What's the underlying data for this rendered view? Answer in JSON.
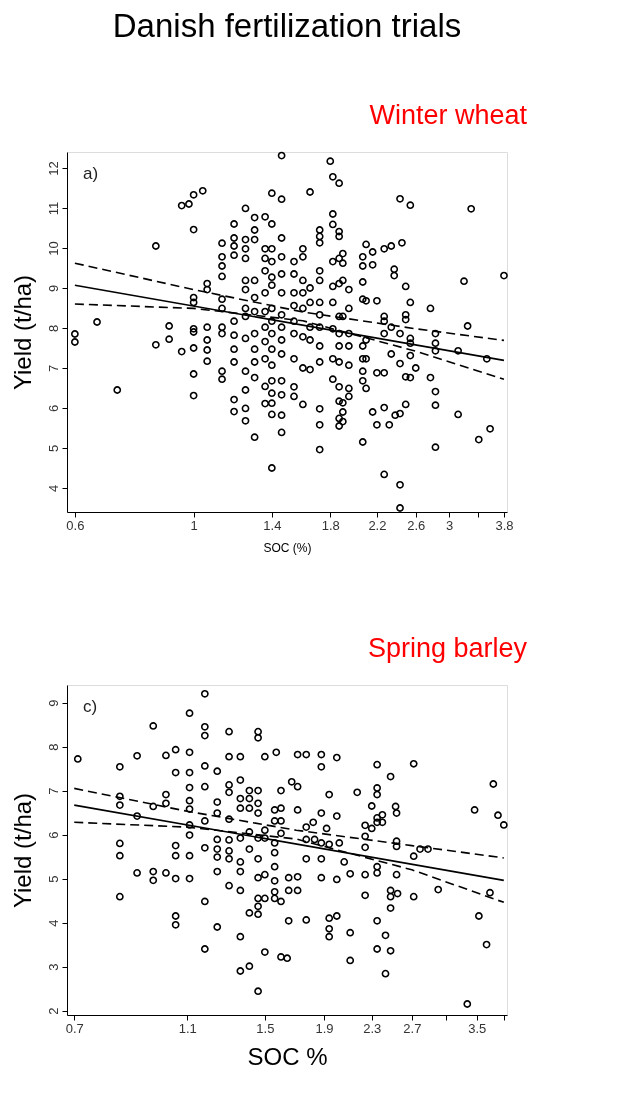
{
  "chart_data": [
    {
      "type": "scatter",
      "title": "Danish fertilization trials",
      "xlabel": "SOC (%)",
      "ylabel": "Yield (t/ha)",
      "annotations": [
        "Winter wheat",
        "a)"
      ],
      "log": "x",
      "grid": false,
      "xlim": [
        0.58,
        3.85
      ],
      "ylim": [
        3.4,
        12.4
      ],
      "xticks": [
        0.6,
        1,
        1.4,
        1.8,
        2.2,
        2.6,
        3,
        {
          "value": 3.4,
          "label": null
        },
        3.8
      ],
      "yticks": [
        4,
        5,
        6,
        7,
        8,
        9,
        10,
        11,
        12
      ],
      "series": [
        {
          "marker": "circle",
          "color": "#000000",
          "x": [
            0.6,
            0.6,
            0.66,
            0.72,
            0.85,
            0.85,
            0.9,
            0.9,
            0.95,
            0.95,
            0.98,
            1.0,
            1.04,
            1.0,
            1.0,
            1.0,
            1.0,
            1.0,
            1.0,
            1.0,
            1.0,
            1.06,
            1.06,
            1.06,
            1.06,
            1.06,
            1.06,
            1.13,
            1.13,
            1.13,
            1.13,
            1.13,
            1.13,
            1.13,
            1.13,
            1.13,
            1.13,
            1.19,
            1.19,
            1.19,
            1.19,
            1.19,
            1.19,
            1.19,
            1.19,
            1.19,
            1.19,
            1.25,
            1.25,
            1.25,
            1.25,
            1.25,
            1.25,
            1.25,
            1.25,
            1.25,
            1.25,
            1.25,
            1.25,
            1.25,
            1.3,
            1.3,
            1.3,
            1.3,
            1.3,
            1.3,
            1.3,
            1.3,
            1.3,
            1.3,
            1.3,
            1.36,
            1.36,
            1.36,
            1.36,
            1.36,
            1.36,
            1.36,
            1.36,
            1.36,
            1.36,
            1.36,
            1.4,
            1.4,
            1.4,
            1.4,
            1.4,
            1.4,
            1.4,
            1.4,
            1.4,
            1.4,
            1.4,
            1.4,
            1.4,
            1.4,
            1.4,
            1.4,
            1.46,
            1.46,
            1.46,
            1.46,
            1.46,
            1.46,
            1.46,
            1.46,
            1.46,
            1.46,
            1.46,
            1.46,
            1.46,
            1.46,
            1.54,
            1.54,
            1.54,
            1.54,
            1.54,
            1.54,
            1.54,
            1.54,
            1.54,
            1.6,
            1.6,
            1.6,
            1.6,
            1.6,
            1.6,
            1.6,
            1.6,
            1.65,
            1.65,
            1.65,
            1.65,
            1.65,
            1.65,
            1.72,
            1.72,
            1.72,
            1.72,
            1.72,
            1.72,
            1.72,
            1.72,
            1.72,
            1.72,
            1.72,
            1.72,
            1.72,
            1.8,
            1.82,
            1.87,
            1.82,
            1.82,
            1.82,
            1.82,
            1.82,
            1.82,
            1.82,
            1.82,
            1.87,
            1.87,
            1.87,
            1.87,
            1.87,
            1.87,
            1.87,
            1.87,
            1.87,
            1.87,
            1.87,
            1.87,
            1.9,
            1.9,
            1.9,
            1.9,
            1.9,
            1.9,
            1.9,
            1.95,
            1.95,
            1.95,
            1.95,
            1.95,
            1.95,
            1.95,
            2.07,
            2.07,
            2.07,
            2.07,
            2.07,
            2.07,
            2.07,
            2.07,
            2.07,
            2.1,
            2.1,
            2.1,
            2.1,
            2.1,
            2.16,
            2.16,
            2.16,
            2.2,
            2.2,
            2.2,
            2.27,
            2.27,
            2.27,
            2.27,
            2.27,
            2.27,
            2.27,
            2.34,
            2.34,
            2.34,
            2.32,
            2.38,
            2.43,
            2.45,
            2.43,
            2.54,
            2.37,
            2.37,
            2.43,
            2.43,
            2.43,
            2.43,
            2.49,
            2.49,
            2.49,
            2.49,
            2.49,
            2.54,
            2.54,
            2.54,
            2.54,
            2.54,
            2.6,
            2.77,
            2.77,
            2.83,
            2.83,
            2.83,
            2.83,
            2.83,
            2.83,
            3.12,
            3.12,
            3.2,
            3.25,
            3.3,
            3.41,
            3.53,
            3.58,
            3.8
          ],
          "values": [
            7.85,
            7.65,
            8.15,
            6.45,
            10.05,
            7.58,
            8.05,
            7.72,
            7.41,
            11.06,
            11.1,
            11.33,
            11.43,
            10.46,
            8.76,
            8.64,
            7.98,
            7.9,
            7.5,
            6.85,
            6.31,
            9.11,
            8.96,
            8.02,
            7.7,
            7.45,
            7.17,
            10.12,
            9.78,
            9.55,
            9.29,
            8.72,
            8.49,
            8.02,
            7.86,
            6.92,
            6.72,
            10.6,
            10.25,
            10.05,
            9.82,
            8.17,
            7.82,
            7.47,
            7.15,
            6.21,
            5.91,
            10.99,
            10.21,
            9.98,
            9.74,
            9.19,
            8.96,
            8.49,
            8.29,
            7.74,
            6.92,
            6.45,
            5.99,
            5.68,
            10.76,
            10.45,
            10.21,
            9.19,
            8.76,
            8.41,
            7.86,
            7.47,
            7.15,
            6.76,
            5.27,
            10.78,
            9.98,
            9.74,
            9.43,
            8.88,
            8.41,
            8.02,
            7.66,
            7.23,
            6.54,
            6.11,
            11.37,
            10.6,
            9.98,
            9.66,
            9.27,
            9.07,
            8.49,
            8.17,
            7.86,
            7.47,
            7.07,
            6.68,
            6.37,
            6.12,
            5.84,
            4.5,
            12.31,
            11.22,
            10.25,
            9.78,
            9.35,
            8.88,
            8.33,
            8.02,
            7.7,
            7.35,
            6.68,
            6.33,
            5.82,
            5.39,
            9.66,
            9.35,
            8.88,
            8.56,
            8.17,
            7.86,
            7.23,
            6.53,
            6.29,
            6.09,
            9.98,
            9.78,
            9.19,
            8.88,
            8.49,
            7.78,
            7.0,
            11.4,
            9.0,
            8.64,
            8.02,
            7.7,
            6.96,
            10.45,
            10.29,
            10.13,
            9.43,
            9.19,
            8.64,
            8.33,
            8.02,
            7.55,
            7.15,
            5.98,
            5.58,
            4.96,
            12.17,
            11.78,
            11.62,
            10.85,
            10.59,
            9.66,
            9.04,
            8.64,
            7.98,
            7.23,
            6.72,
            10.41,
            10.29,
            9.74,
            9.11,
            8.29,
            7.86,
            7.55,
            7.15,
            6.53,
            6.17,
            5.74,
            5.55,
            9.86,
            9.62,
            9.19,
            8.29,
            6.13,
            5.9,
            5.66,
            8.96,
            8.49,
            7.86,
            7.55,
            7.07,
            6.49,
            6.29,
            9.78,
            9.55,
            9.15,
            8.72,
            7.55,
            7.23,
            6.92,
            6.68,
            5.15,
            10.09,
            8.68,
            7.7,
            7.23,
            6.49,
            9.9,
            9.58,
            5.9,
            8.68,
            5.58,
            6.88,
            9.98,
            8.29,
            8.17,
            7.86,
            6.88,
            6.01,
            4.34,
            10.05,
            8.02,
            7.35,
            5.58,
            5.82,
            5.86,
            10.13,
            11.23,
            11.07,
            9.47,
            9.31,
            7.86,
            7.11,
            4.08,
            3.5,
            9.04,
            8.33,
            8.21,
            6.78,
            6.09,
            8.64,
            7.74,
            7.62,
            7.31,
            6.76,
            7.0,
            8.49,
            6.76,
            7.86,
            7.62,
            7.43,
            6.41,
            6.07,
            5.02,
            7.43,
            5.84,
            9.17,
            8.05,
            10.98,
            5.21,
            7.23,
            5.48,
            9.31
          ]
        },
        {
          "type": "line",
          "color": "#000000",
          "line_style": "solid",
          "x": [
            0.6,
            3.8
          ],
          "values": [
            9.07,
            7.19
          ]
        },
        {
          "type": "line",
          "color": "#000000",
          "line_style": "dashed",
          "x": [
            0.6,
            1.0,
            1.6,
            2.6,
            3.8
          ],
          "values": [
            9.62,
            8.96,
            8.4,
            7.98,
            7.69
          ]
        },
        {
          "type": "line",
          "color": "#000000",
          "line_style": "dashed",
          "x": [
            0.6,
            1.0,
            1.6,
            2.6,
            3.8
          ],
          "values": [
            8.6,
            8.49,
            8.18,
            7.42,
            6.72
          ]
        }
      ]
    },
    {
      "type": "scatter",
      "xlabel": "SOC %",
      "ylabel": "Yield (t/ha)",
      "annotations": [
        "Spring barley",
        "c)"
      ],
      "log": "x",
      "grid": false,
      "xlim": [
        0.68,
        3.95
      ],
      "ylim": [
        1.9,
        9.4
      ],
      "xticks": [
        0.7,
        1.1,
        1.5,
        1.9,
        2.3,
        2.7,
        {
          "value": 3.1,
          "label": null
        },
        3.5,
        {
          "value": 3.9,
          "label": null
        }
      ],
      "yticks": [
        2,
        3,
        4,
        5,
        6,
        7,
        8,
        9
      ],
      "series": [
        {
          "marker": "circle",
          "color": "#000000",
          "x": [
            0.71,
            0.84,
            0.84,
            0.84,
            0.84,
            0.84,
            0.84,
            0.9,
            0.9,
            0.9,
            0.96,
            0.96,
            0.96,
            0.96,
            1.01,
            1.01,
            1.01,
            1.01,
            1.05,
            1.05,
            1.05,
            1.05,
            1.05,
            1.05,
            1.05,
            1.11,
            1.11,
            1.11,
            1.11,
            1.11,
            1.11,
            1.11,
            1.11,
            1.11,
            1.11,
            1.18,
            1.18,
            1.18,
            1.18,
            1.18,
            1.18,
            1.18,
            1.18,
            1.18,
            1.24,
            1.24,
            1.24,
            1.24,
            1.24,
            1.24,
            1.24,
            1.24,
            1.3,
            1.3,
            1.3,
            1.3,
            1.3,
            1.3,
            1.3,
            1.3,
            1.3,
            1.36,
            1.36,
            1.36,
            1.36,
            1.36,
            1.36,
            1.36,
            1.36,
            1.36,
            1.36,
            1.41,
            1.41,
            1.41,
            1.41,
            1.41,
            1.41,
            1.41,
            1.46,
            1.46,
            1.46,
            1.46,
            1.46,
            1.46,
            1.46,
            1.46,
            1.46,
            1.46,
            1.46,
            1.46,
            1.5,
            1.5,
            1.5,
            1.5,
            1.5,
            1.5,
            1.56,
            1.56,
            1.56,
            1.56,
            1.56,
            1.56,
            1.56,
            1.56,
            1.57,
            1.6,
            1.6,
            1.6,
            1.6,
            1.6,
            1.6,
            1.65,
            1.65,
            1.65,
            1.71,
            1.77,
            1.88,
            2.0,
            1.88,
            1.67,
            1.71,
            1.71,
            1.82,
            1.88,
            2.0,
            1.77,
            1.92,
            1.77,
            1.83,
            1.88,
            1.94,
            2.02,
            1.77,
            1.88,
            2.06,
            1.71,
            1.88,
            2.0,
            2.11,
            1.71,
            1.77,
            1.94,
            2.0,
            1.94,
            1.94,
            2.11,
            2.11,
            1.64,
            1.94,
            2.17,
            2.24,
            2.24,
            2.3,
            2.3,
            2.24,
            2.24,
            2.24,
            2.35,
            2.35,
            2.35,
            2.35,
            2.35,
            2.4,
            2.4,
            2.35,
            2.35,
            2.35,
            2.35,
            2.43,
            2.43,
            2.48,
            2.48,
            2.53,
            2.54,
            2.54,
            2.54,
            2.72,
            2.54,
            2.48,
            2.48,
            2.55,
            2.48,
            2.72,
            2.72,
            2.79,
            2.88,
            3.0,
            3.37,
            3.47,
            3.53,
            3.64,
            3.69,
            3.74,
            3.81,
            3.9
          ],
          "values": [
            7.72,
            7.54,
            6.87,
            6.67,
            5.8,
            5.52,
            4.59,
            7.79,
            6.42,
            5.13,
            8.47,
            6.64,
            5.16,
            4.96,
            7.8,
            6.91,
            6.71,
            5.13,
            7.41,
            7.93,
            5.75,
            5.52,
            5.0,
            4.15,
            3.95,
            6.77,
            6.58,
            8.76,
            7.87,
            7.41,
            7.07,
            6.22,
            5.99,
            5.52,
            5.0,
            9.2,
            8.45,
            8.25,
            7.56,
            7.09,
            6.31,
            5.7,
            4.48,
            3.4,
            7.44,
            6.74,
            6.49,
            5.89,
            5.67,
            5.49,
            5.16,
            3.9,
            8.34,
            7.77,
            7.13,
            6.96,
            6.35,
            5.88,
            5.63,
            5.45,
            4.84,
            7.77,
            7.24,
            6.82,
            6.6,
            5.92,
            5.38,
            5.16,
            4.73,
            3.68,
            2.9,
            7.0,
            6.82,
            6.6,
            6.06,
            5.67,
            4.22,
            3.01,
            8.34,
            8.2,
            7.0,
            6.71,
            6.49,
            5.92,
            5.45,
            5.02,
            4.55,
            4.37,
            4.19,
            2.44,
            6.1,
            5.92,
            5.09,
            4.55,
            3.33,
            7.77,
            6.56,
            6.31,
            5.81,
            5.59,
            5.27,
            4.95,
            4.7,
            4.55,
            7.87,
            3.22,
            7.0,
            6.6,
            6.31,
            6.03,
            4.48,
            5.02,
            4.73,
            4.04,
            7.82,
            7.82,
            7.82,
            7.75,
            7.54,
            7.2,
            7.09,
            6.56,
            6.28,
            6.49,
            6.42,
            6.17,
            6.14,
            5.89,
            5.89,
            5.81,
            5.78,
            5.81,
            5.45,
            5.45,
            5.38,
            5.04,
            5.02,
            4.98,
            5.11,
            4.73,
            4.06,
            4.1,
            4.15,
            3.86,
            3.68,
            3.77,
            3.14,
            3.19,
            6.91,
            6.96,
            6.21,
            5.96,
            6.14,
            6.65,
            5.71,
            5.09,
            4.62,
            7.59,
            7.06,
            6.91,
            6.38,
            6.28,
            6.45,
            6.28,
            5.27,
            5.13,
            4.04,
            3.4,
            3.71,
            2.84,
            3.36,
            7.32,
            6.64,
            6.49,
            5.85,
            5.73,
            5.51,
            5.09,
            4.73,
            4.59,
            4.66,
            4.33,
            4.59,
            7.61,
            5.67,
            5.67,
            4.75,
            2.15,
            6.56,
            4.15,
            3.5,
            4.68,
            7.15,
            6.44,
            6.22
          ]
        },
        {
          "type": "line",
          "color": "#000000",
          "line_style": "solid",
          "x": [
            0.7,
            3.9
          ],
          "values": [
            6.67,
            4.96
          ]
        },
        {
          "type": "line",
          "color": "#000000",
          "line_style": "dashed",
          "x": [
            0.7,
            1.1,
            1.7,
            2.7,
            3.9
          ],
          "values": [
            7.05,
            6.53,
            6.1,
            5.75,
            5.47
          ]
        },
        {
          "type": "line",
          "color": "#000000",
          "line_style": "dashed",
          "x": [
            0.7,
            1.1,
            1.7,
            2.7,
            3.9
          ],
          "values": [
            6.28,
            6.17,
            5.9,
            5.2,
            4.46
          ]
        }
      ]
    }
  ]
}
